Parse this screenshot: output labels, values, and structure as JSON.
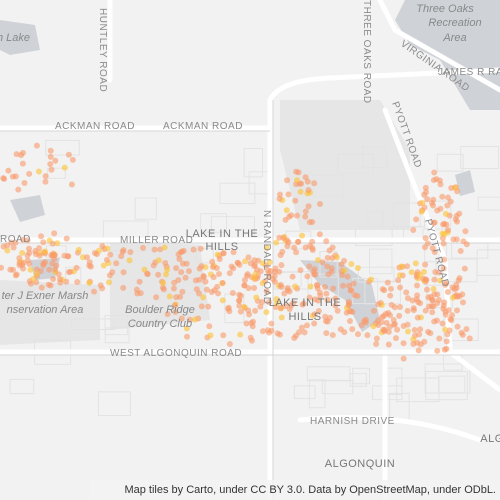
{
  "places": {
    "lake_nw": "th Lake",
    "three_oaks": [
      "Three Oaks",
      "Recreation",
      "Area"
    ],
    "lith_1": [
      "LAKE IN THE",
      "HILLS"
    ],
    "lith_2": [
      "LAKE IN THE",
      "HILLS"
    ],
    "boulder": [
      "Boulder Ridge",
      "Country Club"
    ],
    "marsh": [
      "ter J Exner Marsh",
      "nservation Area"
    ],
    "algonquin": "ALGONQUIN",
    "alg_e": "ALG"
  },
  "roads": {
    "huntley": "HUNTLEY ROAD",
    "three_oaks": "THREE OAKS ROAD",
    "virginia": "VIRGINIA ROAD",
    "james": "JAMES R RAK",
    "ackman_1": "ACKMAN ROAD",
    "ackman_2": "ACKMAN ROAD",
    "pyott_1": "PYOTT ROAD",
    "pyott_2": "PYOTT ROAD",
    "miller": "MILLER ROAD",
    "road_w": "ROAD",
    "randall": "N RANDALL ROAD",
    "algonquin_rd": "WEST ALGONQUIN ROAD",
    "harnish": "HARNISH DRIVE"
  },
  "attribution": "Map tiles by Carto, under CC BY 3.0. Data by OpenStreetMap, under ODbL."
}
